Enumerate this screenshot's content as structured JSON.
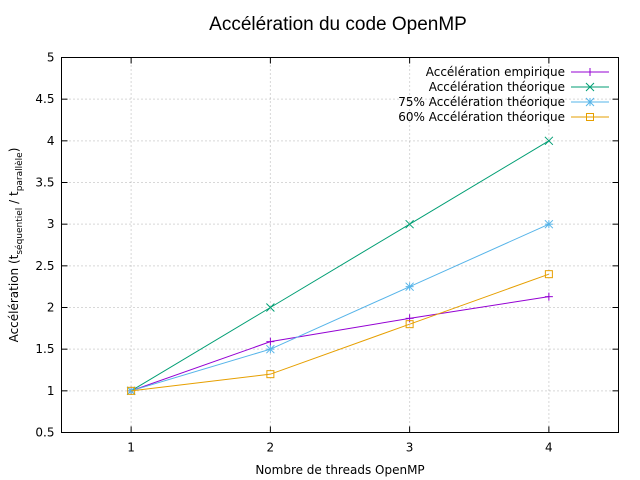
{
  "chart_data": {
    "type": "line",
    "title": "Accélération du code OpenMP",
    "xlabel": "Nombre de threads OpenMP",
    "ylabel": {
      "prefix": "Accélération (t",
      "sub1": "séquentiel",
      "middle": " / t",
      "sub2": "parallèle",
      "suffix": ")"
    },
    "x_ticks": [
      "1",
      "2",
      "3",
      "4"
    ],
    "y_ticks": [
      "0.5",
      "1",
      "1.5",
      "2",
      "2.5",
      "3",
      "3.5",
      "4",
      "4.5",
      "5"
    ],
    "xlim": [
      0.5,
      4.5
    ],
    "ylim": [
      0.5,
      5
    ],
    "grid": true,
    "legend_position": "top-right",
    "x": [
      1,
      2,
      3,
      4
    ],
    "series": [
      {
        "name": "Accélération empirique",
        "values": [
          1.0,
          1.59,
          1.87,
          2.13
        ],
        "color": "#9400d3",
        "marker": "plus"
      },
      {
        "name": "Accélération théorique",
        "values": [
          1.0,
          2.0,
          3.0,
          4.0
        ],
        "color": "#009e73",
        "marker": "cross"
      },
      {
        "name": "75% Accélération théorique",
        "values": [
          1.0,
          1.5,
          2.25,
          3.0
        ],
        "color": "#56b4e9",
        "marker": "star"
      },
      {
        "name": "60% Accélération théorique",
        "values": [
          1.0,
          1.2,
          1.8,
          2.4
        ],
        "color": "#e69f00",
        "marker": "square"
      }
    ]
  }
}
